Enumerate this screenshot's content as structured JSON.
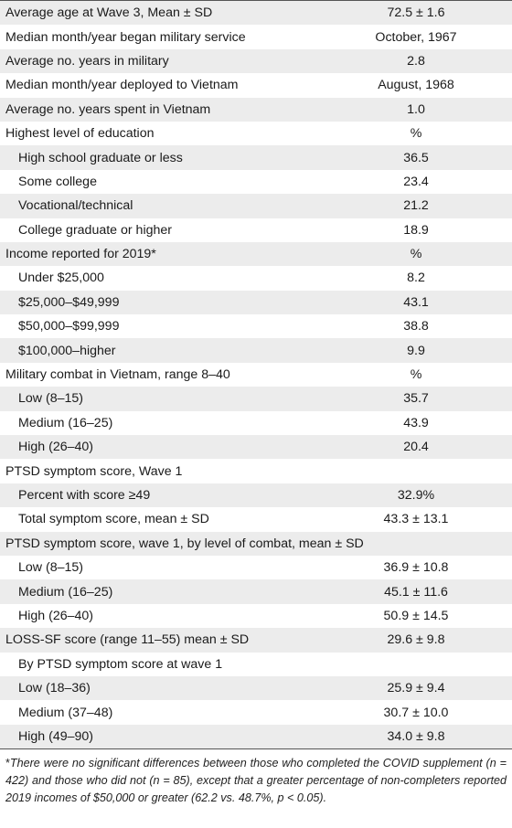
{
  "rows": [
    {
      "label": "Average age at Wave 3, Mean ± SD",
      "value": "72.5 ± 1.6",
      "indent": false
    },
    {
      "label": "Median month/year began military service",
      "value": "October, 1967",
      "indent": false
    },
    {
      "label": "Average no. years in military",
      "value": "2.8",
      "indent": false
    },
    {
      "label": "Median month/year deployed to Vietnam",
      "value": "August, 1968",
      "indent": false
    },
    {
      "label": "Average no. years spent in Vietnam",
      "value": "1.0",
      "indent": false
    },
    {
      "label": "Highest level of education",
      "value": "%",
      "indent": false
    },
    {
      "label": "High school graduate or less",
      "value": "36.5",
      "indent": true
    },
    {
      "label": "Some college",
      "value": "23.4",
      "indent": true
    },
    {
      "label": "Vocational/technical",
      "value": "21.2",
      "indent": true
    },
    {
      "label": "College graduate or higher",
      "value": "18.9",
      "indent": true
    },
    {
      "label": "Income reported for 2019*",
      "value": "%",
      "indent": false
    },
    {
      "label": "Under $25,000",
      "value": "8.2",
      "indent": true
    },
    {
      "label": "$25,000–$49,999",
      "value": "43.1",
      "indent": true
    },
    {
      "label": "$50,000–$99,999",
      "value": "38.8",
      "indent": true
    },
    {
      "label": "$100,000–higher",
      "value": "9.9",
      "indent": true
    },
    {
      "label": "Military combat in Vietnam, range 8–40",
      "value": "%",
      "indent": false
    },
    {
      "label": "Low (8–15)",
      "value": "35.7",
      "indent": true
    },
    {
      "label": "Medium (16–25)",
      "value": "43.9",
      "indent": true
    },
    {
      "label": "High (26–40)",
      "value": "20.4",
      "indent": true
    },
    {
      "label": "PTSD symptom score, Wave 1",
      "value": "",
      "indent": false
    },
    {
      "label": "Percent with score ≥49",
      "value": "32.9%",
      "indent": true
    },
    {
      "label": "Total symptom score, mean ± SD",
      "value": "43.3 ± 13.1",
      "indent": true
    },
    {
      "label": "PTSD symptom score, wave 1, by level of combat, mean ± SD",
      "value": "",
      "indent": false
    },
    {
      "label": "Low (8–15)",
      "value": "36.9 ± 10.8",
      "indent": true
    },
    {
      "label": "Medium (16–25)",
      "value": "45.1 ± 11.6",
      "indent": true
    },
    {
      "label": "High (26–40)",
      "value": "50.9 ± 14.5",
      "indent": true
    },
    {
      "label": "LOSS-SF score (range 11–55) mean ± SD",
      "value": "29.6 ± 9.8",
      "indent": false
    },
    {
      "label": "By PTSD symptom score at wave 1",
      "value": "",
      "indent": true
    },
    {
      "label": "Low (18–36)",
      "value": "25.9 ± 9.4",
      "indent": true
    },
    {
      "label": "Medium (37–48)",
      "value": "30.7 ± 10.0",
      "indent": true
    },
    {
      "label": "High (49–90)",
      "value": "34.0 ± 9.8",
      "indent": true
    }
  ],
  "footnote": {
    "marker": "*",
    "text": "There were no significant differences between those who completed the COVID supplement (n = 422) and those who did not (n = 85), except that a greater percentage of non-completers reported 2019 incomes of $50,000 or greater (62.2 vs. 48.7%, p < 0.05)."
  }
}
